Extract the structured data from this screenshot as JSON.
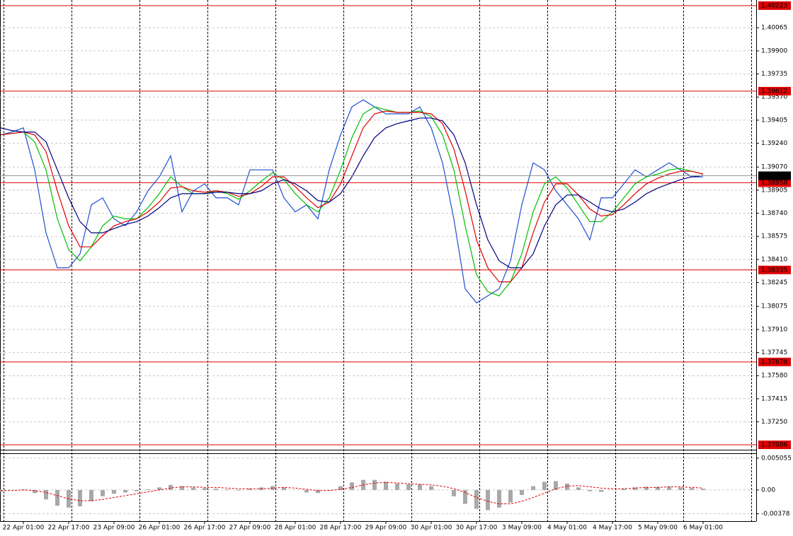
{
  "chart_data": [
    {
      "type": "line",
      "categories": [
        null,
        null,
        "22 Apr 01:00",
        null,
        null,
        null,
        "22 Apr 17:00",
        null,
        null,
        null,
        "23 Apr 09:00",
        null,
        null,
        null,
        "26 Apr 01:00",
        null,
        null,
        null,
        "26 Apr 17:00",
        null,
        null,
        null,
        "27 Apr 09:00",
        null,
        null,
        null,
        "28 Apr 01:00",
        null,
        null,
        null,
        "28 Apr 17:00",
        null,
        null,
        null,
        "29 Apr 09:00",
        null,
        null,
        null,
        "30 Apr 01:00",
        null,
        null,
        null,
        "30 Apr 17:00",
        null,
        null,
        null,
        "3 May 09:00",
        null,
        null,
        null,
        "4 May 01:00",
        null,
        null,
        null,
        "4 May 17:00",
        null,
        null,
        null,
        "5 May 09:00",
        null,
        null,
        null,
        "6 May 01:00"
      ],
      "series": [
        {
          "color": "#2050d0",
          "values": [
            1.393,
            1.3932,
            1.3935,
            1.3905,
            1.386,
            1.3835,
            1.3835,
            1.3845,
            1.388,
            1.3885,
            1.387,
            1.3865,
            1.3875,
            1.389,
            1.39,
            1.3915,
            1.3875,
            1.389,
            1.3895,
            1.3885,
            1.3885,
            1.388,
            1.3905,
            1.3905,
            1.3905,
            1.3885,
            1.3875,
            1.388,
            1.387,
            1.3905,
            1.393,
            1.395,
            1.3955,
            1.395,
            1.3945,
            1.3945,
            1.3945,
            1.395,
            1.3935,
            1.391,
            1.387,
            1.382,
            1.381,
            1.3815,
            1.382,
            1.384,
            1.388,
            1.391,
            1.3905,
            1.389,
            1.388,
            1.387,
            1.3855,
            1.3885,
            1.3885,
            1.3895,
            1.3905,
            1.39,
            1.3905,
            1.391,
            1.3905,
            1.39,
            1.39
          ]
        },
        {
          "color": "#00c000",
          "values": [
            1.393,
            1.3931,
            1.3932,
            1.3925,
            1.3905,
            1.387,
            1.3848,
            1.384,
            1.385,
            1.3865,
            1.3872,
            1.387,
            1.387,
            1.3878,
            1.3888,
            1.39,
            1.3893,
            1.3888,
            1.3888,
            1.389,
            1.3888,
            1.3884,
            1.389,
            1.3897,
            1.3903,
            1.3898,
            1.3888,
            1.388,
            1.3875,
            1.3885,
            1.3905,
            1.3928,
            1.3945,
            1.395,
            1.3948,
            1.3946,
            1.3946,
            1.3947,
            1.3943,
            1.393,
            1.3905,
            1.3865,
            1.383,
            1.3818,
            1.3815,
            1.3825,
            1.3845,
            1.3875,
            1.3895,
            1.39,
            1.3892,
            1.388,
            1.3868,
            1.3868,
            1.3875,
            1.3885,
            1.3895,
            1.39,
            1.3902,
            1.3905,
            1.3906,
            1.3904,
            1.3902
          ]
        },
        {
          "color": "#e00000",
          "values": [
            1.393,
            1.3931,
            1.3932,
            1.393,
            1.3918,
            1.389,
            1.3865,
            1.385,
            1.385,
            1.3858,
            1.3865,
            1.3868,
            1.387,
            1.3875,
            1.3882,
            1.3892,
            1.3893,
            1.389,
            1.3889,
            1.389,
            1.3889,
            1.3886,
            1.3888,
            1.3893,
            1.39,
            1.39,
            1.3893,
            1.3885,
            1.3878,
            1.3882,
            1.3895,
            1.3915,
            1.3935,
            1.3945,
            1.3947,
            1.3946,
            1.3946,
            1.3946,
            1.3945,
            1.3938,
            1.392,
            1.389,
            1.3855,
            1.3835,
            1.3825,
            1.3825,
            1.3835,
            1.386,
            1.3882,
            1.3895,
            1.3895,
            1.3887,
            1.3877,
            1.3872,
            1.3873,
            1.388,
            1.3888,
            1.3895,
            1.3899,
            1.3902,
            1.3904,
            1.3904,
            1.3902
          ]
        },
        {
          "color": "#000080",
          "values": [
            1.3935,
            1.3933,
            1.3932,
            1.3932,
            1.3925,
            1.3905,
            1.3885,
            1.3868,
            1.386,
            1.386,
            1.3863,
            1.3866,
            1.3868,
            1.3872,
            1.3878,
            1.3885,
            1.3888,
            1.3888,
            1.3888,
            1.3889,
            1.3889,
            1.3888,
            1.3888,
            1.389,
            1.3895,
            1.3898,
            1.3895,
            1.389,
            1.3883,
            1.3882,
            1.3888,
            1.39,
            1.3915,
            1.3928,
            1.3935,
            1.3938,
            1.394,
            1.3942,
            1.3942,
            1.394,
            1.393,
            1.391,
            1.388,
            1.3855,
            1.384,
            1.3835,
            1.3835,
            1.3845,
            1.3865,
            1.388,
            1.3887,
            1.3887,
            1.3882,
            1.3877,
            1.3875,
            1.3877,
            1.3882,
            1.3888,
            1.3892,
            1.3895,
            1.3898,
            1.39,
            1.3901
          ]
        }
      ],
      "ylim": [
        1.40253,
        1.37061
      ],
      "yticks": [
        1.40065,
        {
          "value": 1.399,
          "label": "1.39900"
        },
        1.39735,
        {
          "value": 1.3957,
          "label": "1.39570"
        },
        1.39405,
        {
          "value": 1.3924,
          "label": "1.39240"
        },
        {
          "value": 1.3907,
          "label": "1.39070"
        },
        1.38905,
        {
          "value": 1.3874,
          "label": "1.38740"
        },
        1.38575,
        {
          "value": 1.3841,
          "label": "1.38410"
        },
        1.38245,
        1.38075,
        {
          "value": 1.3791,
          "label": "1.37910"
        },
        1.37745,
        {
          "value": 1.3758,
          "label": "1.37580"
        },
        1.37415,
        {
          "value": 1.3725,
          "label": "1.37250"
        }
      ],
      "levels": [
        1.40223,
        1.39612,
        1.38958,
        1.38335,
        1.37678,
        1.37086
      ],
      "level_color": "#e00000",
      "last_price": 1.39008,
      "grid": true
    },
    {
      "type": "bar",
      "series": [
        {
          "color": "#a8a8a8",
          "values": [
            -0.0003,
            0.0,
            0.0001,
            -0.0005,
            -0.0015,
            -0.0025,
            -0.0028,
            -0.0026,
            -0.0018,
            -0.001,
            -0.0006,
            -0.0004,
            -0.0002,
            0.0001,
            0.0004,
            0.0008,
            0.0006,
            0.0004,
            0.0003,
            0.0002,
            0.0001,
            -0.0001,
            0.0002,
            0.0004,
            0.0006,
            0.0004,
            0.0,
            -0.0004,
            -0.0005,
            -0.0001,
            0.0006,
            0.0012,
            0.0016,
            0.0016,
            0.0013,
            0.001,
            0.0009,
            0.0009,
            0.0006,
            0.0,
            -0.001,
            -0.0022,
            -0.003,
            -0.0032,
            -0.0028,
            -0.002,
            -0.0008,
            0.0006,
            0.0013,
            0.0014,
            0.001,
            0.0004,
            -0.0002,
            -0.0003,
            0.0,
            0.0002,
            0.0004,
            0.0005,
            0.0005,
            0.0005,
            0.0004,
            0.0003,
            0.0002
          ]
        },
        {
          "color": "#e00000",
          "dashed": true,
          "values": [
            -0.0001,
            -0.0001,
            0.0,
            -0.0001,
            -0.0004,
            -0.0009,
            -0.0014,
            -0.0017,
            -0.0017,
            -0.0015,
            -0.0012,
            -0.0009,
            -0.0006,
            -0.0003,
            0.0,
            0.0003,
            0.0005,
            0.0005,
            0.0004,
            0.0004,
            0.0003,
            0.0002,
            0.0002,
            0.0002,
            0.0003,
            0.0004,
            0.0003,
            0.0001,
            -0.0001,
            -0.0001,
            0.0001,
            0.0004,
            0.0008,
            0.0011,
            0.0012,
            0.0011,
            0.001,
            0.0009,
            0.0008,
            0.0006,
            0.0002,
            -0.0004,
            -0.0012,
            -0.0018,
            -0.0022,
            -0.0022,
            -0.0018,
            -0.0012,
            -0.0005,
            0.0002,
            0.0006,
            0.0007,
            0.0005,
            0.0003,
            0.0002,
            0.0002,
            0.0003,
            0.0004,
            0.0004,
            0.0005,
            0.0005,
            0.0004,
            0.0003
          ]
        }
      ],
      "ylim": [
        0.00549,
        -0.00473
      ],
      "yticks": [
        0.005055,
        {
          "value": 0,
          "label": "0.00"
        },
        -0.00378
      ]
    }
  ]
}
